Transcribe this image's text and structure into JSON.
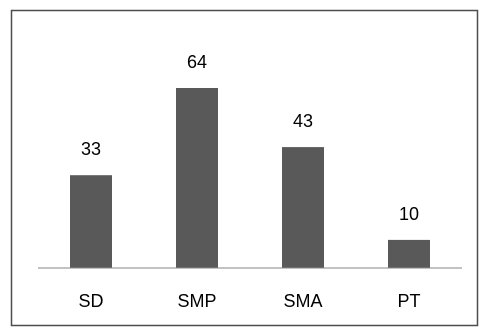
{
  "chart_data": {
    "type": "bar",
    "categories": [
      "SD",
      "SMP",
      "SMA",
      "PT"
    ],
    "values": [
      33,
      64,
      43,
      10
    ],
    "data_labels": [
      "33",
      "64",
      "43",
      "10"
    ],
    "title": "",
    "xlabel": "",
    "ylabel": "",
    "ylim": [
      0,
      70
    ],
    "grid": false,
    "legend": "none",
    "bar_color": "#595959",
    "axis_color": "#868686",
    "frame_color": "#4d4d4d"
  }
}
